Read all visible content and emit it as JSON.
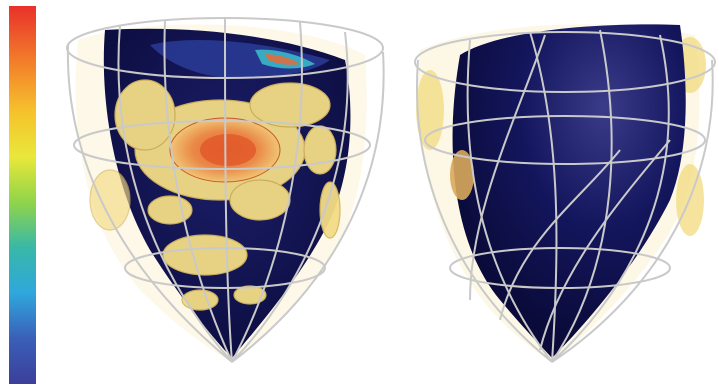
{
  "figure": {
    "colormap": {
      "stops": [
        "#e8312a",
        "#f27a2a",
        "#f6c22c",
        "#e8e83a",
        "#8fd44a",
        "#38b8a8",
        "#2fa7dc",
        "#3a5fb8",
        "#3b3f9a"
      ]
    },
    "colors": {
      "myocardium": "#0f1150",
      "isosurface_yellow": "#f3dc86",
      "isosurface_orange": "#e06a3a",
      "wire_mesh": "#c9c9c9"
    },
    "views": [
      {
        "name": "left-heart-view"
      },
      {
        "name": "right-heart-view"
      }
    ]
  }
}
